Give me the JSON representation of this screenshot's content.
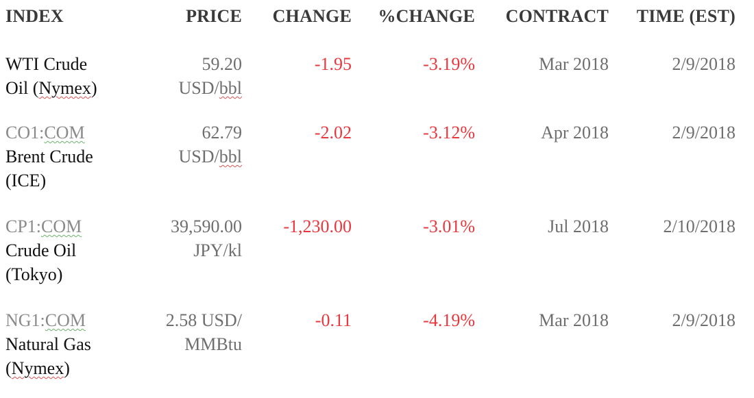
{
  "header": {
    "index": "INDEX",
    "price": "PRICE",
    "change": "CHANGE",
    "pct_change": "%CHANGE",
    "contract": "CONTRACT",
    "time": "TIME (EST)"
  },
  "rows": [
    {
      "ticker_prefix": "",
      "ticker_code": "",
      "name_lines": [
        "WTI Crude",
        "Oil (",
        "Nymex",
        ")"
      ],
      "price_lines": [
        "59.20",
        "USD/",
        "bbl"
      ],
      "change": "-1.95",
      "pct_change": "-3.19%",
      "contract": "Mar 2018",
      "time": "2/9/2018"
    },
    {
      "ticker_prefix": "CO1:",
      "ticker_code": "COM",
      "name_lines": [
        "Brent Crude",
        "(ICE)"
      ],
      "price_lines": [
        "62.79",
        "USD/",
        "bbl"
      ],
      "change": "-2.02",
      "pct_change": "-3.12%",
      "contract": "Apr 2018",
      "time": "2/9/2018"
    },
    {
      "ticker_prefix": "CP1:",
      "ticker_code": "COM",
      "name_lines": [
        "Crude Oil",
        "(Tokyo)"
      ],
      "price_lines": [
        "39,590.00",
        "JPY/kl"
      ],
      "change": "-1,230.00",
      "pct_change": "-3.01%",
      "contract": "Jul 2018",
      "time": "2/10/2018"
    },
    {
      "ticker_prefix": "NG1:",
      "ticker_code": "COM",
      "name_lines": [
        "Natural Gas",
        "(",
        "Nymex",
        ")"
      ],
      "price_lines": [
        "2.58 USD/",
        "MMBtu"
      ],
      "change": "-0.11",
      "pct_change": "-4.19%",
      "contract": "Mar 2018",
      "time": "2/9/2018"
    }
  ]
}
